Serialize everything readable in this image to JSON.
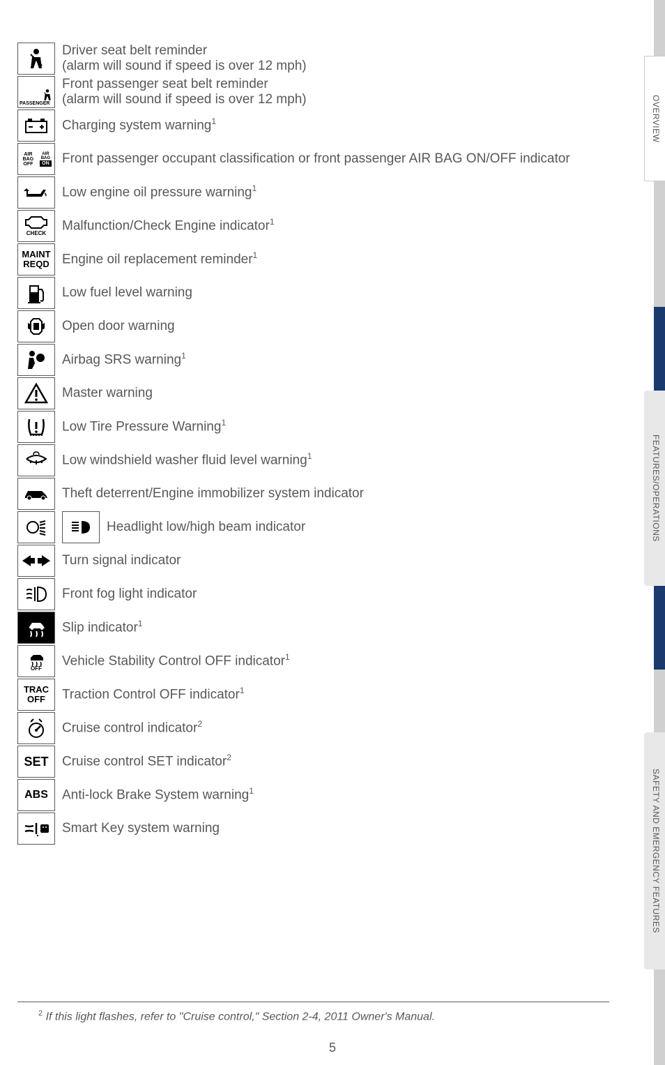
{
  "indicators": [
    {
      "desc": "Driver seat belt reminder\n(alarm will sound if speed is over 12 mph)"
    },
    {
      "desc": "Front passenger seat belt reminder\n(alarm will sound if speed is over 12 mph)"
    },
    {
      "desc_html": "Charging system warning<sup>1</sup>"
    },
    {
      "desc": "Front passenger occupant classification or front passenger AIR BAG ON/OFF indicator"
    },
    {
      "desc_html": "Low engine oil pressure warning<sup>1</sup>"
    },
    {
      "desc_html": "Malfunction/Check Engine indicator<sup>1</sup>"
    },
    {
      "desc_html": "Engine oil replacement reminder<sup>1</sup>"
    },
    {
      "desc": "Low fuel level warning"
    },
    {
      "desc": "Open door warning"
    },
    {
      "desc_html": "Airbag SRS warning<sup>1</sup>"
    },
    {
      "desc": "Master warning"
    },
    {
      "desc_html": "Low Tire Pressure Warning<sup>1</sup>"
    },
    {
      "desc_html": "Low windshield washer fluid level warning<sup>1</sup>"
    },
    {
      "desc": "Theft deterrent/Engine immobilizer system indicator"
    },
    {
      "desc": "Headlight low/high beam indicator"
    },
    {
      "desc": "Turn signal indicator"
    },
    {
      "desc": "Front fog light indicator"
    },
    {
      "desc_html": "Slip indicator<sup>1</sup>"
    },
    {
      "desc_html": "Vehicle Stability Control OFF indicator<sup>1</sup>"
    },
    {
      "desc_html": "Traction Control OFF indicator<sup>1</sup>"
    },
    {
      "desc_html": "Cruise control indicator<sup>2</sup>"
    },
    {
      "desc_html": "Cruise control SET indicator<sup>2</sup>"
    },
    {
      "desc_html": "Anti-lock Brake System warning<sup>1</sup>"
    },
    {
      "desc": "Smart Key system warning"
    }
  ],
  "side_tabs": {
    "overview": "OVERVIEW",
    "features": "FEATURES/OPERATIONS",
    "safety": "SAFETY AND EMERGENCY FEATURES"
  },
  "icon_text": {
    "passenger": "PASSENGER",
    "airbag_off": "AIR BAG\nOFF",
    "airbag_on": "AIR BAG\nON",
    "on_box": "ON",
    "check": "CHECK",
    "maint_reqd": "MAINT\nREQD",
    "trac_off": "TRAC\nOFF",
    "vsc_off": "OFF",
    "set": "SET",
    "abs": "ABS"
  },
  "footnote_html": "<sup>2</sup> If this light flashes, refer to \"Cruise control,\" Section 2-4, 2011 Owner's Manual.",
  "page_number": "5",
  "colors": {
    "text": "#58585a",
    "border": "#58585a",
    "tab_gray": "#e8e8e8",
    "spine": "#d0d0d0",
    "spine_accent": "#1a3a6e"
  }
}
